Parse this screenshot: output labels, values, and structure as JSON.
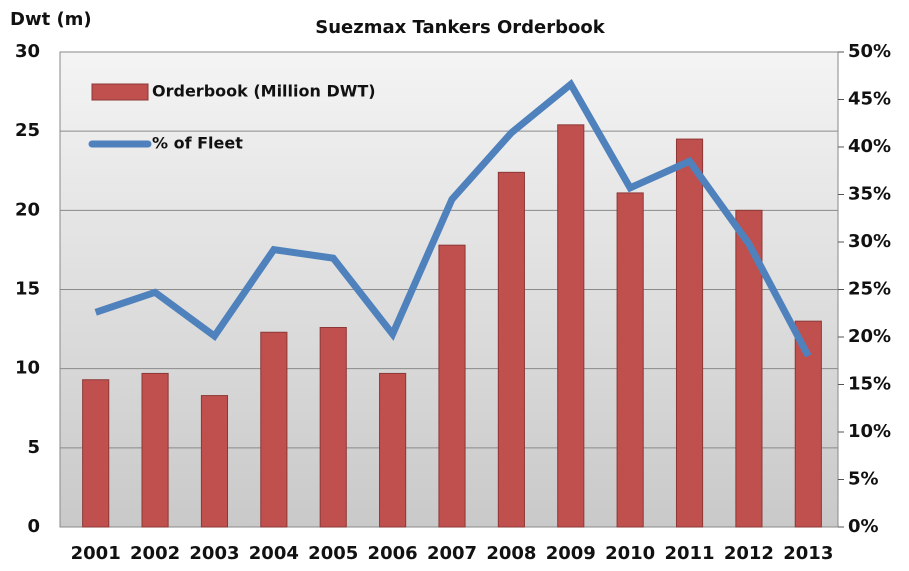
{
  "chart_data": {
    "type": "bar_line",
    "title": "Suezmax Tankers Orderbook",
    "y_label": "Dwt (m)",
    "categories": [
      "2001",
      "2002",
      "2003",
      "2004",
      "2005",
      "2006",
      "2007",
      "2008",
      "2009",
      "2010",
      "2011",
      "2012",
      "2013"
    ],
    "series": [
      {
        "name": "Orderbook (Million DWT)",
        "type": "bar",
        "color": "#c0504d",
        "axis": "y",
        "values": [
          9.3,
          9.7,
          8.3,
          12.3,
          12.6,
          9.7,
          17.8,
          22.4,
          25.4,
          21.1,
          24.5,
          20.0,
          13.0
        ]
      },
      {
        "name": "% of Fleet",
        "type": "line",
        "color": "#4f81bd",
        "axis": "y2",
        "values": [
          22.6,
          24.7,
          20.1,
          29.2,
          28.3,
          20.3,
          34.5,
          41.5,
          46.6,
          35.7,
          38.5,
          29.8,
          18.0
        ]
      }
    ],
    "ylim": [
      0,
      30
    ],
    "yticks": [
      0,
      5,
      10,
      15,
      20,
      25,
      30
    ],
    "y2lim": [
      0,
      50
    ],
    "y2ticks": [
      {
        "value": 0,
        "label": "0%"
      },
      {
        "value": 5,
        "label": "5%"
      },
      {
        "value": 10,
        "label": "10%"
      },
      {
        "value": 15,
        "label": "15%"
      },
      {
        "value": 20,
        "label": "20%"
      },
      {
        "value": 25,
        "label": "25%"
      },
      {
        "value": 30,
        "label": "30%"
      },
      {
        "value": 35,
        "label": "35%"
      },
      {
        "value": 40,
        "label": "40%"
      },
      {
        "value": 45,
        "label": "45%"
      },
      {
        "value": 50,
        "label": "50%"
      }
    ],
    "grid": true,
    "legend": "top-left"
  }
}
